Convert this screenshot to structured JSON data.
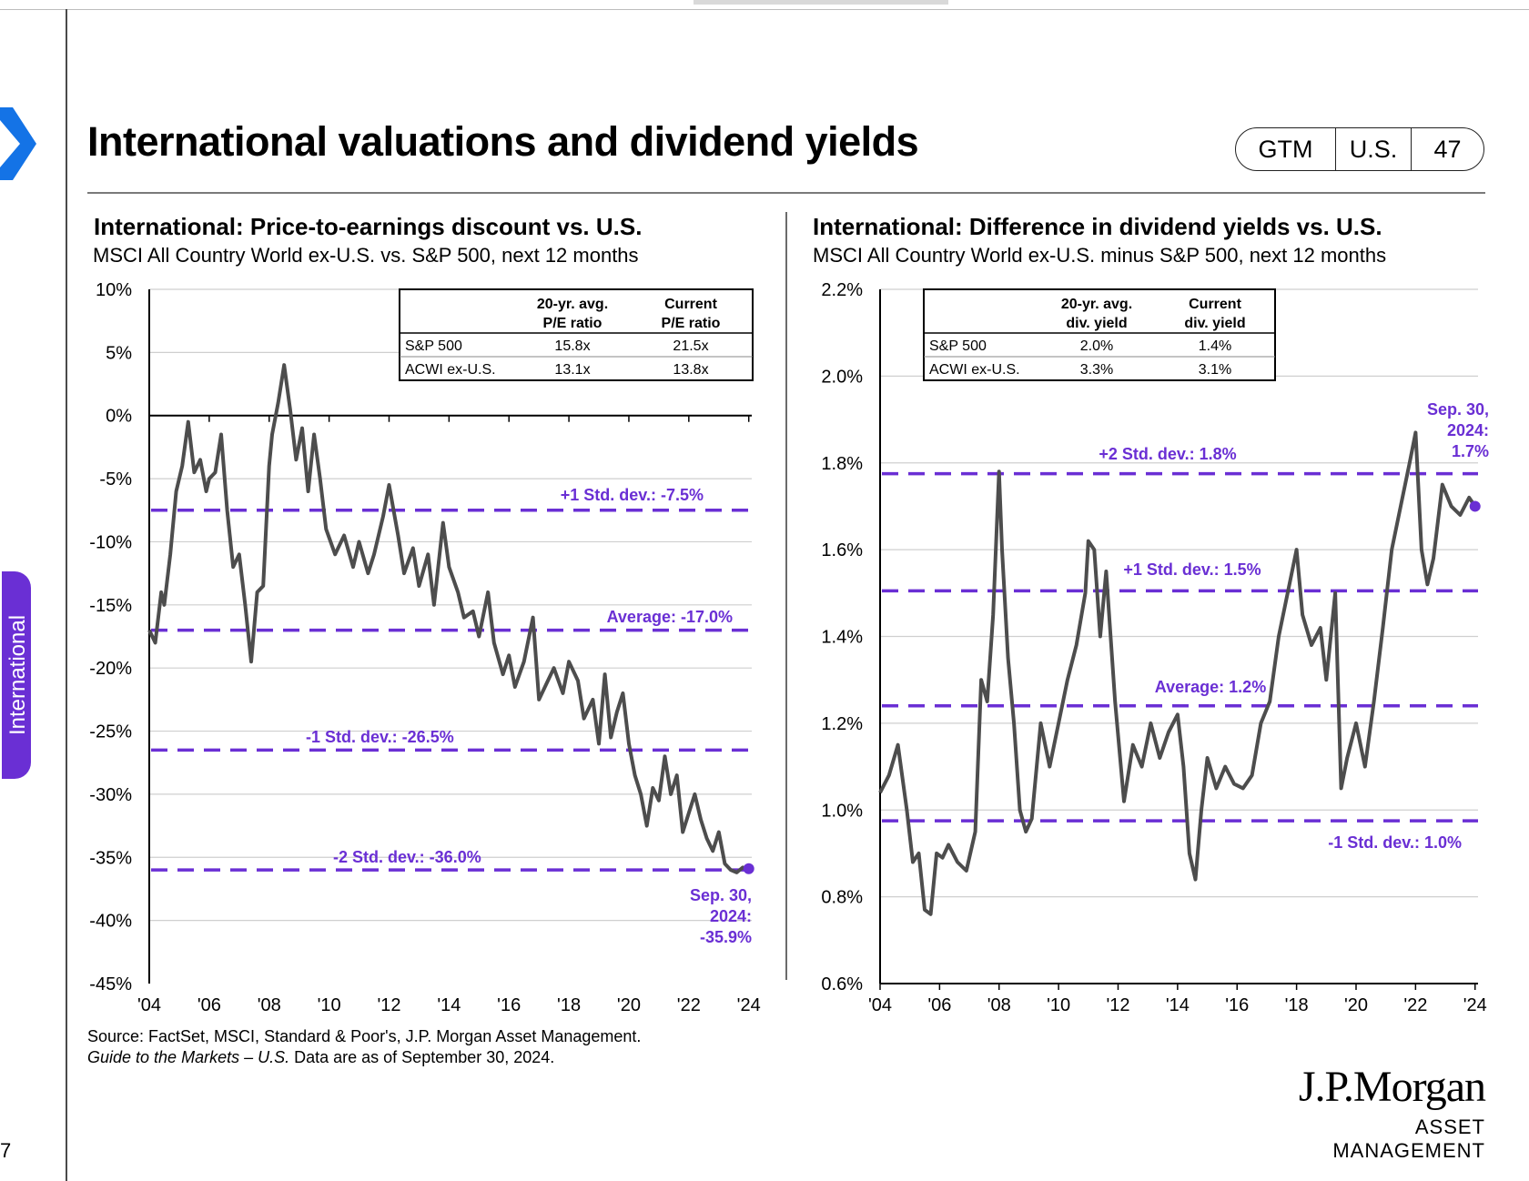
{
  "page": {
    "title": "International valuations and dividend yields",
    "badge": [
      "GTM",
      "U.S.",
      "47"
    ],
    "side_tab": "International",
    "left_page_number": "7",
    "source_line1": "Source: FactSet, MSCI, Standard & Poor's, J.P. Morgan Asset Management.",
    "source_line2_italic": "Guide to the Markets – U.S.",
    "source_line2_rest": " Data are as of September 30, 2024.",
    "logo_name": "J.P.Morgan",
    "logo_sub": "ASSET MANAGEMENT",
    "colors": {
      "accent": "#6a2fd4",
      "line": "#4d4d4d",
      "grid": "#cfcfcf"
    }
  },
  "chart_data": [
    {
      "type": "line",
      "title": "International: Price-to-earnings discount vs. U.S.",
      "subtitle": "MSCI All Country World ex-U.S. vs. S&P 500, next 12 months",
      "y_ticks": [
        "10%",
        "5%",
        "0%",
        "-5%",
        "-10%",
        "-15%",
        "-20%",
        "-25%",
        "-30%",
        "-35%",
        "-40%",
        "-45%"
      ],
      "ylim": [
        -45,
        10
      ],
      "x_ticks": [
        "'04",
        "'06",
        "'08",
        "'10",
        "'12",
        "'14",
        "'16",
        "'18",
        "'20",
        "'22",
        "'24"
      ],
      "xlim": [
        2004,
        2024.1
      ],
      "table": {
        "headers": [
          "",
          "20-yr. avg.\nP/E ratio",
          "Current\nP/E ratio"
        ],
        "rows": [
          [
            "S&P 500",
            "15.8x",
            "21.5x"
          ],
          [
            "ACWI ex-U.S.",
            "13.1x",
            "13.8x"
          ]
        ]
      },
      "reference_lines": [
        {
          "label": "+1 Std. dev.: -7.5%",
          "value": -7.5
        },
        {
          "label": "Average: -17.0%",
          "value": -17.0
        },
        {
          "label": "-1 Std. dev.: -26.5%",
          "value": -26.5
        },
        {
          "label": "-2 Std. dev.: -36.0%",
          "value": -36.0
        }
      ],
      "endpoint": {
        "label": [
          "Sep. 30,",
          "2024:",
          "-35.9%"
        ],
        "x": 2024.0,
        "y": -35.9
      },
      "series": [
        {
          "x": [
            2004.0,
            2004.2,
            2004.4,
            2004.5,
            2004.7,
            2004.9,
            2005.1,
            2005.3,
            2005.5,
            2005.7,
            2005.9,
            2006.0,
            2006.2,
            2006.4,
            2006.6,
            2006.8,
            2007.0,
            2007.2,
            2007.4,
            2007.6,
            2007.8,
            2008.0,
            2008.1,
            2008.3,
            2008.5,
            2008.7,
            2008.9,
            2009.1,
            2009.3,
            2009.5,
            2009.7,
            2009.9,
            2010.2,
            2010.5,
            2010.8,
            2011.0,
            2011.3,
            2011.5,
            2011.8,
            2012.0,
            2012.3,
            2012.5,
            2012.8,
            2013.0,
            2013.3,
            2013.5,
            2013.8,
            2014.0,
            2014.3,
            2014.5,
            2014.8,
            2015.0,
            2015.3,
            2015.5,
            2015.8,
            2016.0,
            2016.2,
            2016.5,
            2016.8,
            2017.0,
            2017.3,
            2017.5,
            2017.8,
            2018.0,
            2018.3,
            2018.5,
            2018.8,
            2019.0,
            2019.2,
            2019.4,
            2019.6,
            2019.8,
            2020.0,
            2020.2,
            2020.4,
            2020.6,
            2020.8,
            2021.0,
            2021.2,
            2021.4,
            2021.6,
            2021.8,
            2022.0,
            2022.2,
            2022.4,
            2022.6,
            2022.8,
            2023.0,
            2023.2,
            2023.4,
            2023.6,
            2023.8,
            2024.0
          ],
          "values": [
            -17.0,
            -18.0,
            -14.0,
            -15.0,
            -11.0,
            -6.0,
            -4.0,
            -0.5,
            -4.5,
            -3.5,
            -6.0,
            -5.0,
            -4.5,
            -1.5,
            -7.5,
            -12.0,
            -11.0,
            -15.0,
            -19.5,
            -14.0,
            -13.5,
            -4.0,
            -1.5,
            1.0,
            4.0,
            0.5,
            -3.5,
            -1.0,
            -6.0,
            -1.5,
            -5.0,
            -9.0,
            -11.0,
            -9.5,
            -12.0,
            -10.0,
            -12.5,
            -11.0,
            -8.0,
            -5.5,
            -9.5,
            -12.5,
            -10.5,
            -13.5,
            -11.0,
            -15.0,
            -8.5,
            -12.0,
            -14.0,
            -16.0,
            -15.5,
            -17.5,
            -14.0,
            -18.0,
            -20.5,
            -19.0,
            -21.5,
            -19.5,
            -16.0,
            -22.5,
            -21.0,
            -20.0,
            -22.0,
            -19.5,
            -21.0,
            -24.0,
            -22.5,
            -26.0,
            -20.5,
            -25.5,
            -23.5,
            -22.0,
            -26.0,
            -28.5,
            -30.0,
            -32.5,
            -29.5,
            -30.5,
            -27.0,
            -30.0,
            -28.5,
            -33.0,
            -31.5,
            -30.0,
            -32.0,
            -33.5,
            -34.5,
            -33.0,
            -35.5,
            -36.0,
            -36.2,
            -35.8,
            -35.9
          ]
        }
      ]
    },
    {
      "type": "line",
      "title": "International: Difference in dividend yields vs. U.S.",
      "subtitle": "MSCI All Country World ex-U.S. minus S&P 500, next 12 months",
      "y_ticks": [
        "2.2%",
        "2.0%",
        "1.8%",
        "1.6%",
        "1.4%",
        "1.2%",
        "1.0%",
        "0.8%",
        "0.6%"
      ],
      "ylim": [
        0.6,
        2.2
      ],
      "x_ticks": [
        "'04",
        "'06",
        "'08",
        "'10",
        "'12",
        "'14",
        "'16",
        "'18",
        "'20",
        "'22",
        "'24"
      ],
      "xlim": [
        2004,
        2024.1
      ],
      "table": {
        "headers": [
          "",
          "20-yr. avg.\ndiv. yield",
          "Current\ndiv. yield"
        ],
        "rows": [
          [
            "S&P 500",
            "2.0%",
            "1.4%"
          ],
          [
            "ACWI ex-U.S.",
            "3.3%",
            "3.1%"
          ]
        ]
      },
      "reference_lines": [
        {
          "label": "+2 Std. dev.: 1.8%",
          "value": 1.775
        },
        {
          "label": "+1 Std. dev.: 1.5%",
          "value": 1.505
        },
        {
          "label": "Average: 1.2%",
          "value": 1.24
        },
        {
          "label": "-1 Std. dev.: 1.0%",
          "value": 0.975
        }
      ],
      "endpoint": {
        "label": [
          "Sep. 30,",
          "2024:",
          "1.7%"
        ],
        "x": 2024.0,
        "y": 1.7
      },
      "series": [
        {
          "x": [
            2004.0,
            2004.3,
            2004.6,
            2004.9,
            2005.1,
            2005.3,
            2005.5,
            2005.7,
            2005.9,
            2006.1,
            2006.3,
            2006.6,
            2006.9,
            2007.2,
            2007.4,
            2007.6,
            2007.8,
            2008.0,
            2008.1,
            2008.3,
            2008.5,
            2008.7,
            2008.9,
            2009.1,
            2009.4,
            2009.7,
            2010.0,
            2010.3,
            2010.6,
            2010.9,
            2011.0,
            2011.2,
            2011.4,
            2011.6,
            2011.9,
            2012.2,
            2012.5,
            2012.8,
            2013.1,
            2013.4,
            2013.7,
            2014.0,
            2014.2,
            2014.4,
            2014.6,
            2014.8,
            2015.0,
            2015.3,
            2015.6,
            2015.9,
            2016.2,
            2016.5,
            2016.8,
            2017.1,
            2017.4,
            2017.7,
            2018.0,
            2018.2,
            2018.5,
            2018.8,
            2019.0,
            2019.3,
            2019.5,
            2019.7,
            2020.0,
            2020.3,
            2020.6,
            2020.9,
            2021.2,
            2021.5,
            2021.8,
            2022.0,
            2022.2,
            2022.4,
            2022.6,
            2022.9,
            2023.2,
            2023.5,
            2023.8,
            2024.0
          ],
          "values": [
            1.04,
            1.08,
            1.15,
            1.0,
            0.88,
            0.9,
            0.77,
            0.76,
            0.9,
            0.89,
            0.92,
            0.88,
            0.86,
            0.95,
            1.3,
            1.25,
            1.45,
            1.78,
            1.6,
            1.35,
            1.2,
            1.0,
            0.95,
            0.98,
            1.2,
            1.1,
            1.2,
            1.3,
            1.38,
            1.5,
            1.62,
            1.6,
            1.4,
            1.55,
            1.25,
            1.02,
            1.15,
            1.1,
            1.2,
            1.12,
            1.18,
            1.22,
            1.1,
            0.9,
            0.84,
            1.0,
            1.12,
            1.05,
            1.1,
            1.06,
            1.05,
            1.08,
            1.2,
            1.25,
            1.4,
            1.5,
            1.6,
            1.45,
            1.38,
            1.42,
            1.3,
            1.5,
            1.05,
            1.12,
            1.2,
            1.1,
            1.25,
            1.42,
            1.6,
            1.7,
            1.8,
            1.87,
            1.6,
            1.52,
            1.58,
            1.75,
            1.7,
            1.68,
            1.72,
            1.7
          ]
        }
      ]
    }
  ]
}
